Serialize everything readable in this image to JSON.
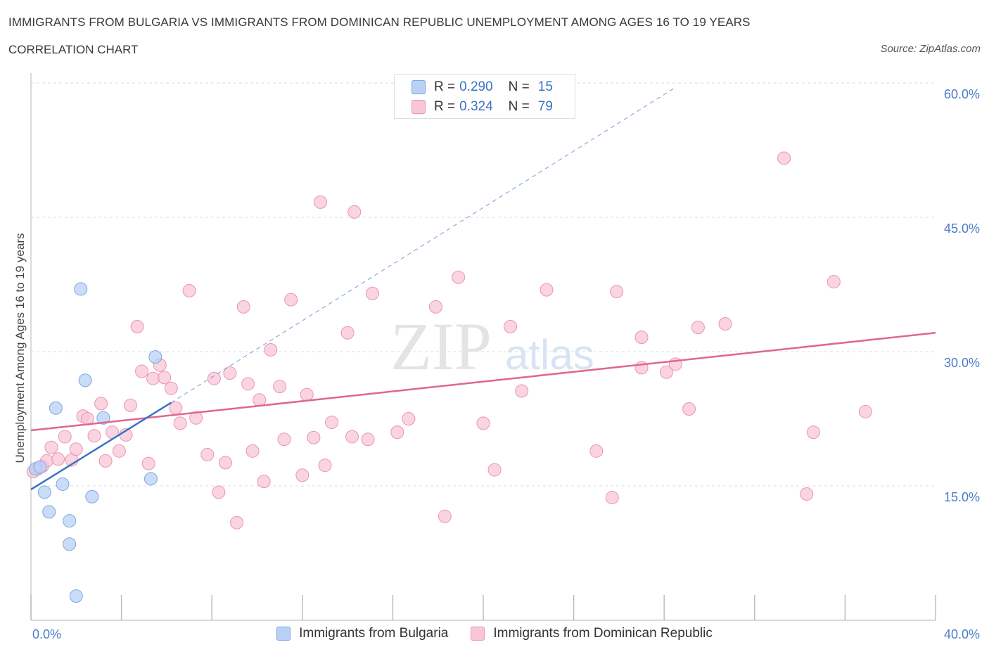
{
  "header": {
    "title": "IMMIGRANTS FROM BULGARIA VS IMMIGRANTS FROM DOMINICAN REPUBLIC UNEMPLOYMENT AMONG AGES 16 TO 19 YEARS",
    "subtitle": "CORRELATION CHART",
    "source": "Source: ZipAtlas.com"
  },
  "legend": {
    "rows": [
      {
        "r_label": "R =",
        "r_value": "0.290",
        "n_label": "N =",
        "n_value": "15"
      },
      {
        "r_label": "R =",
        "r_value": "0.324",
        "n_label": "N =",
        "n_value": "79"
      }
    ]
  },
  "watermark": {
    "zip": "ZIP",
    "atlas": "atlas"
  },
  "colors": {
    "bulgaria_fill": "#b8d1f5",
    "bulgaria_stroke": "#7ea6e0",
    "bulgaria_line": "#3a72c7",
    "dominican_fill": "#f8c6d5",
    "dominican_stroke": "#eb94b2",
    "dominican_line": "#e0668f",
    "tick_text": "#4a7cc9",
    "grid": "#dddddd"
  },
  "chart_data": {
    "type": "scatter",
    "title": "IMMIGRANTS FROM BULGARIA VS IMMIGRANTS FROM DOMINICAN REPUBLIC UNEMPLOYMENT AMONG AGES 16 TO 19 YEARS",
    "xlabel": "",
    "ylabel": "Unemployment Among Ages 16 to 19 years",
    "xlim": [
      0,
      40
    ],
    "ylim": [
      0,
      60
    ],
    "x_tick_labels": [
      "0.0%",
      "40.0%"
    ],
    "y_ticks": [
      15,
      30,
      45,
      60
    ],
    "y_tick_labels": [
      "15.0%",
      "30.0%",
      "45.0%",
      "60.0%"
    ],
    "grid": true,
    "legend_position": "top-center",
    "series": [
      {
        "name": "Immigrants from Bulgaria",
        "R": 0.29,
        "N": 15,
        "trend": {
          "x0": 0.0,
          "y0": 14.6,
          "x1": 6.2,
          "y1": 24.3,
          "dashed_to": {
            "x": 28.5,
            "y": 59.5
          }
        },
        "points": [
          {
            "x": 0.2,
            "y": 16.9
          },
          {
            "x": 0.4,
            "y": 17.1
          },
          {
            "x": 0.6,
            "y": 14.3
          },
          {
            "x": 0.8,
            "y": 12.1
          },
          {
            "x": 1.1,
            "y": 23.7
          },
          {
            "x": 1.4,
            "y": 15.2
          },
          {
            "x": 1.7,
            "y": 11.1
          },
          {
            "x": 1.7,
            "y": 8.5
          },
          {
            "x": 2.0,
            "y": 2.7
          },
          {
            "x": 2.2,
            "y": 37.0
          },
          {
            "x": 2.4,
            "y": 26.8
          },
          {
            "x": 2.7,
            "y": 13.8
          },
          {
            "x": 3.2,
            "y": 22.6
          },
          {
            "x": 5.3,
            "y": 15.8
          },
          {
            "x": 5.5,
            "y": 29.4
          }
        ]
      },
      {
        "name": "Immigrants from Dominican Republic",
        "R": 0.324,
        "N": 79,
        "trend": {
          "x0": 0.0,
          "y0": 21.2,
          "x1": 40.0,
          "y1": 32.1
        },
        "points": [
          {
            "x": 0.1,
            "y": 16.6
          },
          {
            "x": 0.3,
            "y": 16.9
          },
          {
            "x": 0.5,
            "y": 17.2
          },
          {
            "x": 0.7,
            "y": 17.8
          },
          {
            "x": 0.9,
            "y": 19.3
          },
          {
            "x": 1.2,
            "y": 18.0
          },
          {
            "x": 1.5,
            "y": 20.5
          },
          {
            "x": 1.8,
            "y": 17.9
          },
          {
            "x": 2.0,
            "y": 19.1
          },
          {
            "x": 2.3,
            "y": 22.8
          },
          {
            "x": 2.5,
            "y": 22.5
          },
          {
            "x": 2.8,
            "y": 20.6
          },
          {
            "x": 3.1,
            "y": 24.2
          },
          {
            "x": 3.3,
            "y": 17.8
          },
          {
            "x": 3.6,
            "y": 21.0
          },
          {
            "x": 3.9,
            "y": 18.9
          },
          {
            "x": 4.2,
            "y": 20.7
          },
          {
            "x": 4.4,
            "y": 24.0
          },
          {
            "x": 4.7,
            "y": 32.8
          },
          {
            "x": 4.9,
            "y": 27.8
          },
          {
            "x": 5.2,
            "y": 17.5
          },
          {
            "x": 5.4,
            "y": 27.0
          },
          {
            "x": 5.7,
            "y": 28.5
          },
          {
            "x": 5.9,
            "y": 27.1
          },
          {
            "x": 6.2,
            "y": 25.9
          },
          {
            "x": 6.4,
            "y": 23.7
          },
          {
            "x": 6.6,
            "y": 22.0
          },
          {
            "x": 7.0,
            "y": 36.8
          },
          {
            "x": 7.3,
            "y": 22.6
          },
          {
            "x": 7.8,
            "y": 18.5
          },
          {
            "x": 8.1,
            "y": 27.0
          },
          {
            "x": 8.3,
            "y": 14.3
          },
          {
            "x": 8.6,
            "y": 17.6
          },
          {
            "x": 8.8,
            "y": 27.6
          },
          {
            "x": 9.1,
            "y": 10.9
          },
          {
            "x": 9.4,
            "y": 35.0
          },
          {
            "x": 9.6,
            "y": 26.4
          },
          {
            "x": 9.8,
            "y": 18.9
          },
          {
            "x": 10.1,
            "y": 24.6
          },
          {
            "x": 10.3,
            "y": 15.5
          },
          {
            "x": 10.6,
            "y": 30.2
          },
          {
            "x": 11.0,
            "y": 26.1
          },
          {
            "x": 11.2,
            "y": 20.2
          },
          {
            "x": 11.5,
            "y": 35.8
          },
          {
            "x": 12.0,
            "y": 16.2
          },
          {
            "x": 12.2,
            "y": 25.2
          },
          {
            "x": 12.5,
            "y": 20.4
          },
          {
            "x": 12.8,
            "y": 46.7
          },
          {
            "x": 13.0,
            "y": 17.3
          },
          {
            "x": 13.3,
            "y": 22.1
          },
          {
            "x": 14.0,
            "y": 32.1
          },
          {
            "x": 14.2,
            "y": 20.5
          },
          {
            "x": 14.3,
            "y": 45.6
          },
          {
            "x": 14.9,
            "y": 20.2
          },
          {
            "x": 15.1,
            "y": 36.5
          },
          {
            "x": 16.2,
            "y": 21.0
          },
          {
            "x": 16.7,
            "y": 22.5
          },
          {
            "x": 17.9,
            "y": 35.0
          },
          {
            "x": 18.3,
            "y": 11.6
          },
          {
            "x": 18.9,
            "y": 38.3
          },
          {
            "x": 20.0,
            "y": 22.0
          },
          {
            "x": 20.5,
            "y": 16.8
          },
          {
            "x": 21.2,
            "y": 32.8
          },
          {
            "x": 21.7,
            "y": 25.6
          },
          {
            "x": 22.8,
            "y": 36.9
          },
          {
            "x": 25.0,
            "y": 18.9
          },
          {
            "x": 25.7,
            "y": 13.7
          },
          {
            "x": 25.9,
            "y": 36.7
          },
          {
            "x": 27.0,
            "y": 31.6
          },
          {
            "x": 27.0,
            "y": 28.2
          },
          {
            "x": 28.1,
            "y": 27.7
          },
          {
            "x": 28.5,
            "y": 28.6
          },
          {
            "x": 29.5,
            "y": 32.7
          },
          {
            "x": 29.1,
            "y": 23.6
          },
          {
            "x": 30.7,
            "y": 33.1
          },
          {
            "x": 33.3,
            "y": 51.6
          },
          {
            "x": 34.3,
            "y": 14.1
          },
          {
            "x": 34.6,
            "y": 21.0
          },
          {
            "x": 35.5,
            "y": 37.8
          },
          {
            "x": 36.9,
            "y": 23.3
          }
        ]
      }
    ]
  }
}
